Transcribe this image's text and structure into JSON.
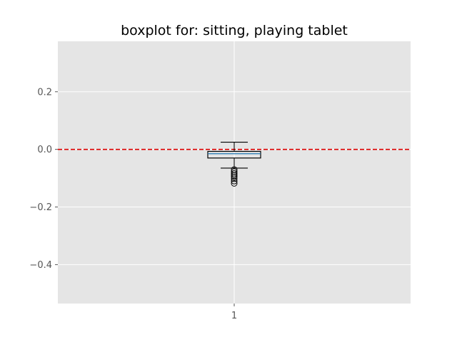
{
  "chart_data": {
    "type": "boxplot",
    "title": "boxplot for: sitting, playing tablet",
    "xlabel": "",
    "ylabel": "",
    "ylim": [
      -0.535,
      0.375
    ],
    "yticks": [
      {
        "value": 0.2,
        "label": "0.2"
      },
      {
        "value": 0.0,
        "label": "0.0"
      },
      {
        "value": -0.2,
        "label": "−0.2"
      },
      {
        "value": -0.4,
        "label": "−0.4"
      }
    ],
    "xticks": [
      {
        "value": 1,
        "label": "1"
      }
    ],
    "xlim": [
      0.5,
      1.5
    ],
    "grid": true,
    "reference_line": {
      "y": 0.0,
      "style": "dashed",
      "color": "#dd0000"
    },
    "boxes": [
      {
        "position": 1,
        "whisker_low": -0.065,
        "q1": -0.03,
        "median": -0.015,
        "q3": -0.007,
        "whisker_high": 0.025,
        "outliers": [
          -0.07,
          -0.077,
          -0.083,
          -0.089,
          -0.095,
          -0.102,
          -0.11,
          -0.118
        ]
      }
    ],
    "colors": {
      "background": "#e5e5e5",
      "grid": "#ffffff",
      "box": "#000000",
      "median": "#1f77b4"
    }
  }
}
